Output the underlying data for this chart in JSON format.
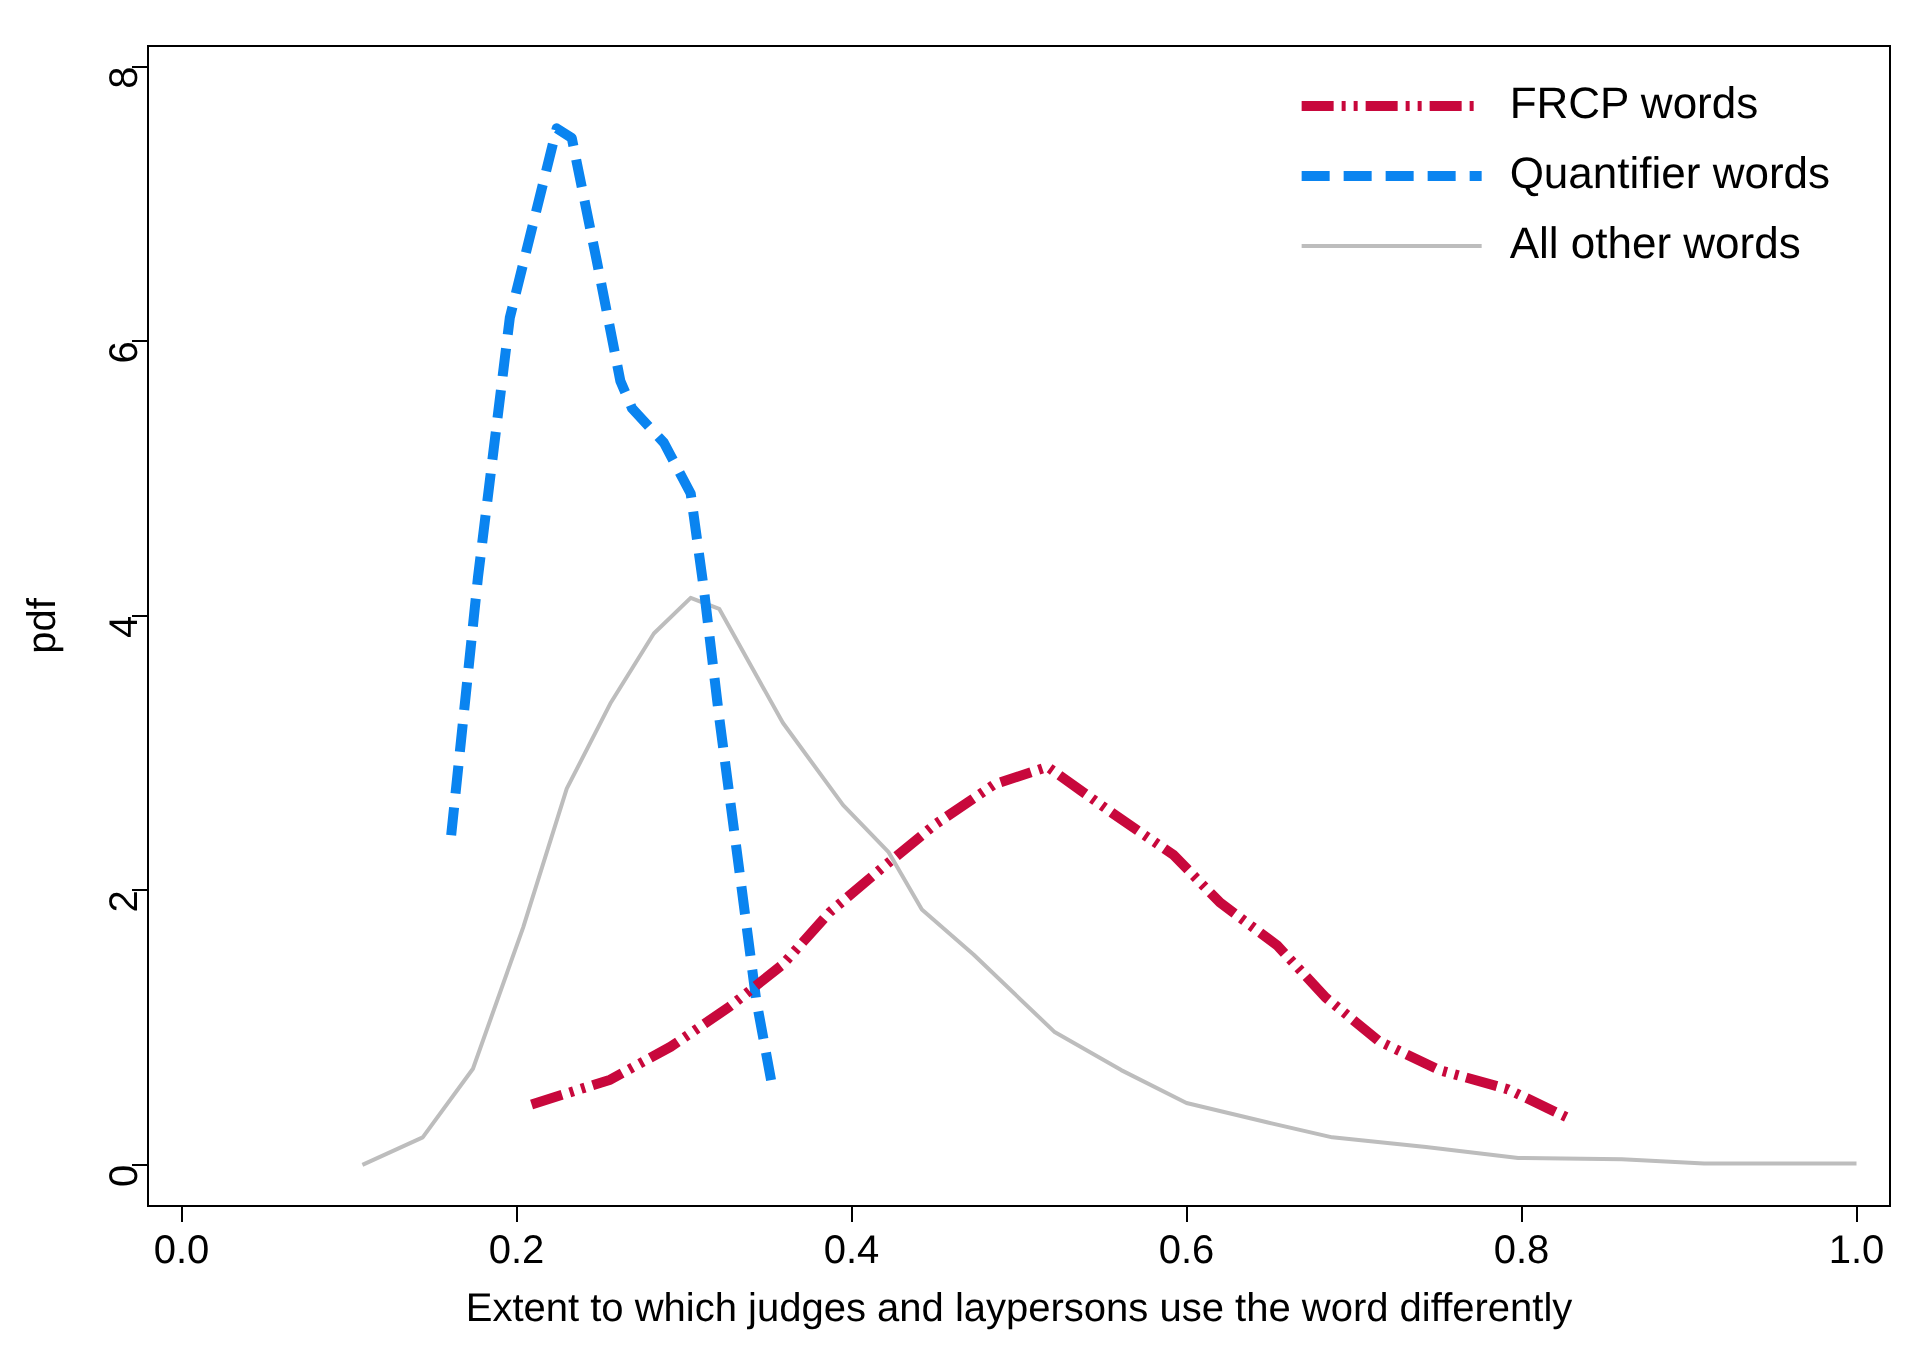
{
  "chart_data": {
    "type": "line",
    "xlabel": "Extent to which judges and laypersons use the word differently",
    "ylabel": "pdf",
    "xlim": [
      -0.02,
      1.02
    ],
    "ylim": [
      -0.3,
      8.15
    ],
    "xticks": [
      {
        "value": 0,
        "label": "0.0"
      },
      {
        "value": 0.2,
        "label": "0.2"
      },
      {
        "value": 0.4,
        "label": "0.4"
      },
      {
        "value": 0.6,
        "label": "0.6"
      },
      {
        "value": 0.8,
        "label": "0.8"
      },
      {
        "value": 1,
        "label": "1.0"
      }
    ],
    "yticks": [
      0,
      2,
      4,
      6,
      8
    ],
    "grid": false,
    "legend": "top right",
    "marker": "none",
    "series": [
      {
        "name": "FRCP words",
        "color": "#c8083c",
        "line_style": "dashdot",
        "x": [
          0.209,
          0.256,
          0.292,
          0.327,
          0.359,
          0.387,
          0.419,
          0.45,
          0.485,
          0.517,
          0.556,
          0.592,
          0.62,
          0.654,
          0.683,
          0.715,
          0.751,
          0.792,
          0.828
        ],
        "values": [
          0.44,
          0.62,
          0.86,
          1.15,
          1.46,
          1.84,
          2.17,
          2.48,
          2.77,
          2.9,
          2.56,
          2.26,
          1.91,
          1.6,
          1.22,
          0.9,
          0.69,
          0.55,
          0.34
        ]
      },
      {
        "name": "Quantifier words",
        "color": "#0a84f0",
        "line_style": "dashed",
        "x": [
          0.161,
          0.177,
          0.196,
          0.224,
          0.233,
          0.248,
          0.262,
          0.269,
          0.288,
          0.304,
          0.312,
          0.321,
          0.332,
          0.343,
          0.353
        ],
        "values": [
          2.4,
          4.28,
          6.17,
          7.55,
          7.48,
          6.58,
          5.71,
          5.51,
          5.26,
          4.89,
          4.18,
          3.26,
          2.24,
          1.21,
          0.55
        ]
      },
      {
        "name": "All other words",
        "color": "#bdbdbd",
        "line_style": "solid",
        "x": [
          0.108,
          0.144,
          0.174,
          0.204,
          0.23,
          0.256,
          0.282,
          0.304,
          0.321,
          0.359,
          0.395,
          0.422,
          0.442,
          0.473,
          0.521,
          0.561,
          0.6,
          0.648,
          0.687,
          0.743,
          0.798,
          0.86,
          0.909,
          1.0
        ],
        "values": [
          0,
          0.2,
          0.7,
          1.73,
          2.74,
          3.36,
          3.87,
          4.13,
          4.05,
          3.22,
          2.62,
          2.28,
          1.86,
          1.53,
          0.97,
          0.69,
          0.45,
          0.31,
          0.2,
          0.13,
          0.05,
          0.04,
          0.01,
          0.01
        ]
      }
    ]
  }
}
